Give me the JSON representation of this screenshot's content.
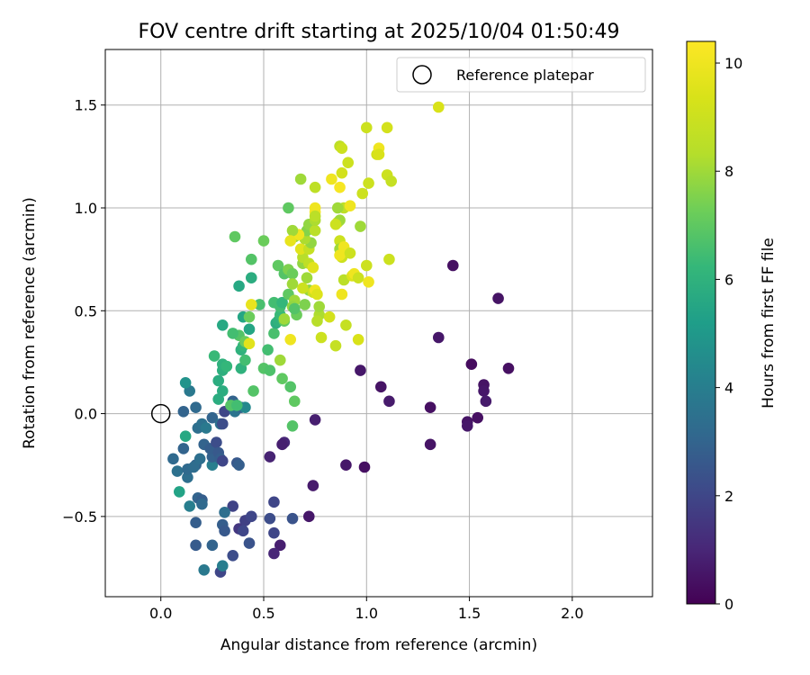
{
  "chart_data": {
    "type": "scatter",
    "title": "FOV centre drift starting at 2025/10/04 01:50:49",
    "xlabel": "Angular distance from reference (arcmin)",
    "ylabel": "Rotation from reference (arcmin)",
    "xlim": [
      -0.27,
      2.39
    ],
    "ylim": [
      -0.89,
      1.77
    ],
    "xticks": [
      0.0,
      0.5,
      1.0,
      1.5,
      2.0
    ],
    "xtick_labels": [
      "0.0",
      "0.5",
      "1.0",
      "1.5",
      "2.0"
    ],
    "yticks": [
      -0.5,
      0.0,
      0.5,
      1.0,
      1.5
    ],
    "ytick_labels": [
      "−0.5",
      "0.0",
      "0.5",
      "1.0",
      "1.5"
    ],
    "grid": true,
    "legend": {
      "location": "top-right",
      "entries": [
        "Reference platepar"
      ]
    },
    "reference_point": {
      "x": 0.0,
      "y": 0.0,
      "label": "Reference platepar"
    },
    "colorbar": {
      "label": "Hours from first FF file",
      "colormap": "viridis",
      "range": [
        0,
        10.4
      ],
      "ticks": [
        0,
        2,
        4,
        6,
        8,
        10
      ],
      "tick_labels": [
        "0",
        "2",
        "4",
        "6",
        "8",
        "10"
      ]
    },
    "points": [
      [
        1.42,
        0.72,
        0.4
      ],
      [
        1.64,
        0.56,
        0.5
      ],
      [
        1.35,
        0.37,
        0.6
      ],
      [
        1.51,
        0.24,
        0.3
      ],
      [
        1.69,
        0.22,
        0.4
      ],
      [
        1.57,
        0.14,
        0.5
      ],
      [
        1.57,
        0.11,
        0.6
      ],
      [
        1.58,
        0.06,
        0.7
      ],
      [
        1.31,
        0.03,
        0.4
      ],
      [
        1.11,
        0.06,
        0.7
      ],
      [
        1.07,
        0.13,
        0.5
      ],
      [
        0.97,
        0.21,
        0.6
      ],
      [
        1.49,
        -0.04,
        0.5
      ],
      [
        1.49,
        -0.06,
        0.6
      ],
      [
        1.54,
        -0.02,
        0.4
      ],
      [
        1.31,
        -0.15,
        0.5
      ],
      [
        0.75,
        -0.03,
        0.8
      ],
      [
        0.99,
        -0.26,
        0.4
      ],
      [
        0.9,
        -0.25,
        0.6
      ],
      [
        0.6,
        -0.14,
        1.0
      ],
      [
        0.59,
        -0.15,
        0.8
      ],
      [
        0.53,
        -0.21,
        0.9
      ],
      [
        0.74,
        -0.35,
        0.7
      ],
      [
        0.72,
        -0.5,
        0.6
      ],
      [
        0.58,
        -0.64,
        0.8
      ],
      [
        0.55,
        -0.68,
        1.0
      ],
      [
        0.55,
        -0.43,
        2.0
      ],
      [
        0.53,
        -0.51,
        2.2
      ],
      [
        0.55,
        -0.58,
        2.0
      ],
      [
        0.64,
        -0.51,
        2.4
      ],
      [
        0.38,
        -0.56,
        1.5
      ],
      [
        0.41,
        -0.52,
        1.8
      ],
      [
        0.44,
        -0.5,
        2.0
      ],
      [
        0.35,
        -0.45,
        1.9
      ],
      [
        0.4,
        -0.57,
        2.0
      ],
      [
        0.43,
        -0.63,
        2.4
      ],
      [
        0.35,
        -0.69,
        2.2
      ],
      [
        0.29,
        -0.77,
        2.0
      ],
      [
        0.3,
        -0.54,
        2.8
      ],
      [
        0.31,
        -0.57,
        2.6
      ],
      [
        0.31,
        -0.48,
        3.4
      ],
      [
        0.3,
        -0.74,
        4.0
      ],
      [
        0.25,
        -0.64,
        3.0
      ],
      [
        0.21,
        -0.76,
        3.8
      ],
      [
        0.17,
        -0.64,
        2.7
      ],
      [
        0.17,
        -0.53,
        2.8
      ],
      [
        0.18,
        -0.41,
        3.0
      ],
      [
        0.2,
        -0.42,
        2.8
      ],
      [
        0.2,
        -0.44,
        3.2
      ],
      [
        0.14,
        -0.45,
        4.0
      ],
      [
        0.09,
        -0.38,
        5.4
      ],
      [
        0.08,
        -0.28,
        3.5
      ],
      [
        0.06,
        -0.22,
        3.2
      ],
      [
        0.13,
        -0.31,
        3.4
      ],
      [
        0.13,
        -0.27,
        3.2
      ],
      [
        0.17,
        -0.25,
        3.0
      ],
      [
        0.16,
        -0.26,
        3.3
      ],
      [
        0.19,
        -0.22,
        3.4
      ],
      [
        0.25,
        -0.25,
        4.0
      ],
      [
        0.25,
        -0.21,
        2.9
      ],
      [
        0.21,
        -0.15,
        3.0
      ],
      [
        0.24,
        -0.17,
        2.8
      ],
      [
        0.27,
        -0.14,
        2.2
      ],
      [
        0.28,
        -0.19,
        2.6
      ],
      [
        0.29,
        -0.22,
        2.8
      ],
      [
        0.3,
        -0.23,
        2.0
      ],
      [
        0.37,
        -0.24,
        2.6
      ],
      [
        0.38,
        -0.25,
        2.8
      ],
      [
        0.11,
        -0.17,
        3.0
      ],
      [
        0.12,
        -0.11,
        5.6
      ],
      [
        0.18,
        -0.07,
        3.4
      ],
      [
        0.2,
        -0.05,
        3.5
      ],
      [
        0.22,
        -0.07,
        3.8
      ],
      [
        0.25,
        -0.02,
        3.0
      ],
      [
        0.29,
        -0.05,
        3.5
      ],
      [
        0.3,
        -0.05,
        2.2
      ],
      [
        0.31,
        0.01,
        2.0
      ],
      [
        0.35,
        0.06,
        3.0
      ],
      [
        0.36,
        0.01,
        3.6
      ],
      [
        0.39,
        0.03,
        3.0
      ],
      [
        0.41,
        0.03,
        4.4
      ],
      [
        0.11,
        0.01,
        3.0
      ],
      [
        0.17,
        0.03,
        3.2
      ],
      [
        0.14,
        0.11,
        3.8
      ],
      [
        0.12,
        0.15,
        4.8
      ],
      [
        0.28,
        0.07,
        5.8
      ],
      [
        0.3,
        0.11,
        5.8
      ],
      [
        0.28,
        0.16,
        5.8
      ],
      [
        0.3,
        0.21,
        5.9
      ],
      [
        0.3,
        0.24,
        6.0
      ],
      [
        0.26,
        0.28,
        6.3
      ],
      [
        0.32,
        0.23,
        6.2
      ],
      [
        0.39,
        0.22,
        6.0
      ],
      [
        0.41,
        0.26,
        6.5
      ],
      [
        0.39,
        0.31,
        6.0
      ],
      [
        0.4,
        0.33,
        6.2
      ],
      [
        0.38,
        0.38,
        6.8
      ],
      [
        0.35,
        0.39,
        6.5
      ],
      [
        0.41,
        0.35,
        7.2
      ],
      [
        0.43,
        0.34,
        9.6
      ],
      [
        0.43,
        0.41,
        5.5
      ],
      [
        0.4,
        0.47,
        5.5
      ],
      [
        0.3,
        0.43,
        5.6
      ],
      [
        0.34,
        0.04,
        6.8
      ],
      [
        0.37,
        0.04,
        6.5
      ],
      [
        0.45,
        0.11,
        6.8
      ],
      [
        0.5,
        0.22,
        6.8
      ],
      [
        0.53,
        0.21,
        6.7
      ],
      [
        0.52,
        0.31,
        6.5
      ],
      [
        0.55,
        0.39,
        6.6
      ],
      [
        0.56,
        0.44,
        5.8
      ],
      [
        0.57,
        0.45,
        6.0
      ],
      [
        0.6,
        0.45,
        7.0
      ],
      [
        0.58,
        0.48,
        6.3
      ],
      [
        0.58,
        0.52,
        6.5
      ],
      [
        0.55,
        0.54,
        6.5
      ],
      [
        0.59,
        0.54,
        6.2
      ],
      [
        0.43,
        0.47,
        7.2
      ],
      [
        0.48,
        0.53,
        6.6
      ],
      [
        0.44,
        0.53,
        9.8
      ],
      [
        0.6,
        0.46,
        8.0
      ],
      [
        0.58,
        0.26,
        8.0
      ],
      [
        0.59,
        0.17,
        7.0
      ],
      [
        0.63,
        0.13,
        6.8
      ],
      [
        0.65,
        0.06,
        7.0
      ],
      [
        0.64,
        -0.06,
        6.8
      ],
      [
        0.38,
        0.62,
        5.6
      ],
      [
        0.44,
        0.66,
        5.8
      ],
      [
        0.44,
        0.75,
        6.8
      ],
      [
        0.36,
        0.86,
        7.0
      ],
      [
        0.5,
        0.84,
        7.2
      ],
      [
        0.57,
        0.72,
        7.0
      ],
      [
        0.6,
        0.68,
        6.8
      ],
      [
        0.62,
        0.7,
        7.5
      ],
      [
        0.64,
        0.68,
        7.2
      ],
      [
        0.62,
        0.58,
        7.0
      ],
      [
        0.64,
        0.63,
        8.0
      ],
      [
        0.65,
        0.55,
        8.0
      ],
      [
        0.64,
        0.52,
        7.8
      ],
      [
        0.66,
        0.48,
        7.2
      ],
      [
        0.65,
        0.51,
        6.8
      ],
      [
        0.7,
        0.53,
        7.5
      ],
      [
        0.72,
        0.6,
        7.8
      ],
      [
        0.74,
        0.59,
        9.0
      ],
      [
        0.75,
        0.6,
        10.0
      ],
      [
        0.76,
        0.58,
        9.5
      ],
      [
        0.77,
        0.48,
        8.2
      ],
      [
        0.76,
        0.45,
        8.4
      ],
      [
        0.77,
        0.52,
        8.0
      ],
      [
        0.78,
        0.37,
        9.0
      ],
      [
        0.82,
        0.47,
        9.2
      ],
      [
        0.85,
        0.33,
        8.8
      ],
      [
        0.9,
        0.43,
        8.8
      ],
      [
        0.96,
        0.36,
        9.4
      ],
      [
        0.63,
        0.36,
        10.0
      ],
      [
        0.69,
        0.61,
        9.0
      ],
      [
        0.71,
        0.66,
        8.0
      ],
      [
        0.69,
        0.73,
        7.8
      ],
      [
        0.69,
        0.76,
        8.4
      ],
      [
        0.72,
        0.73,
        8.6
      ],
      [
        0.74,
        0.71,
        9.6
      ],
      [
        0.68,
        0.8,
        9.6
      ],
      [
        0.72,
        0.8,
        8.8
      ],
      [
        0.73,
        0.83,
        7.8
      ],
      [
        0.7,
        0.85,
        8.2
      ],
      [
        0.71,
        0.89,
        7.6
      ],
      [
        0.72,
        0.92,
        7.8
      ],
      [
        0.75,
        0.89,
        8.5
      ],
      [
        0.75,
        0.94,
        8.2
      ],
      [
        0.75,
        0.98,
        10.2
      ],
      [
        0.75,
        1.0,
        10.0
      ],
      [
        0.75,
        0.96,
        8.5
      ],
      [
        0.65,
        0.86,
        8.0
      ],
      [
        0.67,
        0.87,
        10.0
      ],
      [
        0.64,
        0.89,
        8.0
      ],
      [
        0.63,
        0.84,
        9.8
      ],
      [
        0.62,
        1.0,
        7.0
      ],
      [
        0.68,
        1.14,
        8.0
      ],
      [
        0.75,
        1.1,
        8.6
      ],
      [
        0.83,
        1.14,
        10.0
      ],
      [
        0.87,
        1.1,
        10.2
      ],
      [
        0.89,
        1.0,
        8.6
      ],
      [
        0.92,
        1.01,
        10.0
      ],
      [
        0.86,
        1.0,
        8.0
      ],
      [
        0.86,
        0.93,
        9.4
      ],
      [
        0.87,
        0.94,
        8.0
      ],
      [
        0.85,
        0.92,
        9.0
      ],
      [
        0.87,
        0.84,
        9.0
      ],
      [
        0.87,
        0.8,
        8.0
      ],
      [
        0.88,
        0.76,
        9.0
      ],
      [
        0.89,
        0.81,
        10.0
      ],
      [
        0.87,
        0.77,
        10.0
      ],
      [
        0.89,
        0.65,
        8.5
      ],
      [
        0.88,
        0.58,
        10.0
      ],
      [
        0.92,
        0.78,
        9.0
      ],
      [
        0.93,
        0.67,
        9.5
      ],
      [
        0.94,
        0.68,
        10.0
      ],
      [
        0.96,
        0.66,
        9.0
      ],
      [
        1.0,
        0.72,
        9.0
      ],
      [
        1.01,
        0.64,
        10.0
      ],
      [
        0.97,
        0.91,
        8.0
      ],
      [
        0.98,
        1.07,
        9.0
      ],
      [
        1.01,
        1.12,
        9.0
      ],
      [
        1.05,
        1.26,
        9.2
      ],
      [
        1.06,
        1.29,
        10.0
      ],
      [
        1.06,
        1.26,
        9.4
      ],
      [
        1.1,
        1.16,
        9.0
      ],
      [
        1.12,
        1.13,
        8.8
      ],
      [
        1.11,
        0.75,
        9.0
      ],
      [
        0.87,
        1.3,
        8.6
      ],
      [
        0.88,
        1.29,
        9.0
      ],
      [
        0.91,
        1.22,
        9.0
      ],
      [
        0.88,
        1.17,
        9.2
      ],
      [
        1.0,
        1.39,
        9.0
      ],
      [
        1.1,
        1.39,
        9.2
      ],
      [
        1.35,
        1.49,
        9.4
      ]
    ]
  }
}
